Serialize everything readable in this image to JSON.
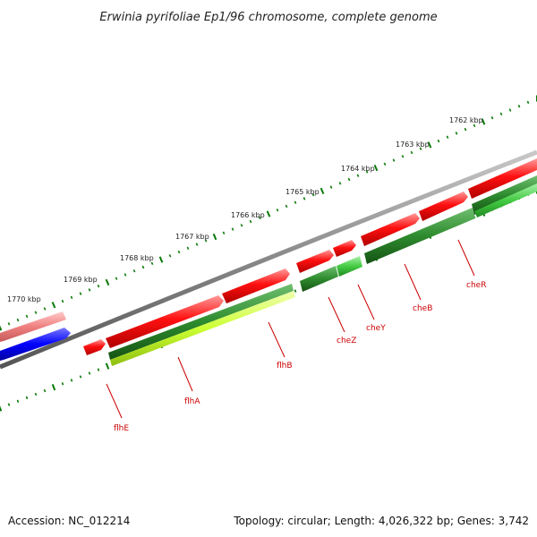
{
  "title": "Erwinia pyrifoliae Ep1/96 chromosome, complete genome",
  "footer": {
    "accession": "Accession: NC_012214",
    "summary": "Topology: circular; Length: 4,026,322 bp; Genes: 3,742"
  },
  "scale_labels": [
    "1762 kbp",
    "1763 kbp",
    "1764 kbp",
    "1765 kbp",
    "1766 kbp",
    "1767 kbp",
    "1768 kbp",
    "1769 kbp",
    "1770 kbp"
  ],
  "gene_labels": [
    "cheR",
    "cheB",
    "cheY",
    "cheZ",
    "flhB",
    "flhA",
    "flhE"
  ],
  "colors": {
    "label": "#cc0000",
    "forward_cds": "#ff0000",
    "forward_cds_light": "#f08080",
    "reverse_cds": "#0000ff",
    "ring_gray": "#888888",
    "tick": "#0a7a0a",
    "feature_dark_green": "#2e8b2e",
    "feature_light_green": "#44cc44",
    "feature_yellow_green": "#ccff33"
  }
}
